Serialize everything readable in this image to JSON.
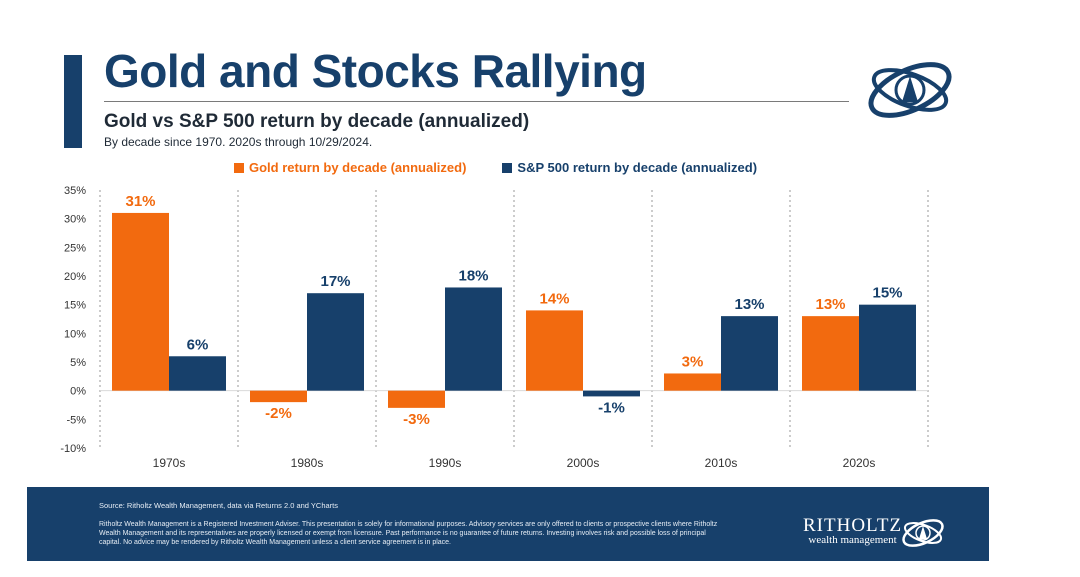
{
  "header": {
    "title": "Gold and Stocks Rallying",
    "subtitle": "Gold vs S&P 500 return by decade (annualized)",
    "note": "By decade since 1970. 2020s through 10/29/2024."
  },
  "colors": {
    "gold": "#f26a0f",
    "sp500": "#17406b",
    "brand_navy": "#17406b"
  },
  "chart_data": {
    "type": "bar",
    "categories": [
      "1970s",
      "1980s",
      "1990s",
      "2000s",
      "2010s",
      "2020s"
    ],
    "series": [
      {
        "name": "Gold return by decade (annualized)",
        "values": [
          31,
          -2,
          -3,
          14,
          3,
          13
        ],
        "labels": [
          "31%",
          "-2%",
          "-3%",
          "14%",
          "3%",
          "13%"
        ],
        "color": "#f26a0f"
      },
      {
        "name": "S&P 500 return by decade (annualized)",
        "values": [
          6,
          17,
          18,
          -1,
          13,
          15
        ],
        "labels": [
          "6%",
          "17%",
          "18%",
          "-1%",
          "13%",
          "15%"
        ],
        "color": "#17406b"
      }
    ],
    "ylim": [
      -10,
      35
    ],
    "yticks": [
      35,
      30,
      25,
      20,
      15,
      10,
      5,
      0,
      -5,
      -10
    ],
    "ytick_labels": [
      "35%",
      "30%",
      "25%",
      "20%",
      "15%",
      "10%",
      "5%",
      "0%",
      "-5%",
      "-10%"
    ],
    "legend_position": "top-center",
    "grid": "dotted vertical separators between decades"
  },
  "footer": {
    "source": "Source: Ritholtz Wealth Management, data via Returns 2.0 and YCharts",
    "disclaimer": "Ritholtz Wealth Management is a Registered Investment Adviser. This presentation is solely for informational purposes. Advisory services are only offered to clients or prospective clients where Ritholtz Wealth Management and its representatives are properly licensed or exempt from licensure. Past performance is no guarantee of future returns. Investing involves risk and possible loss of principal capital. No advice may be rendered by Ritholtz Wealth Management unless a client service agreement is in place.",
    "brand_name": "RITHOLTZ",
    "brand_sub": "wealth management"
  }
}
